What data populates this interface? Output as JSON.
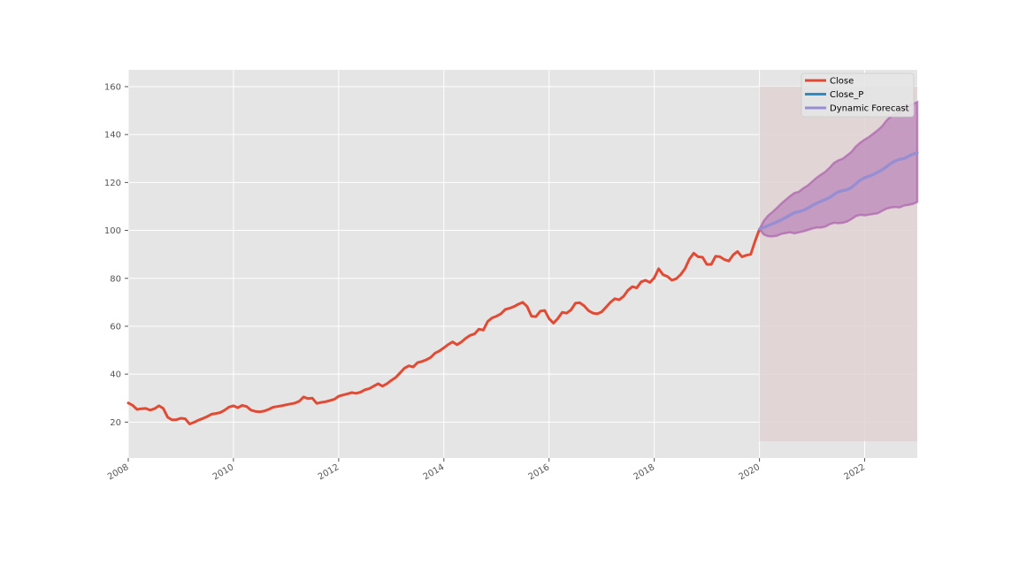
{
  "chart_data": {
    "type": "line",
    "title": "",
    "xlabel": "",
    "ylabel": "",
    "xlim": [
      "2008-01",
      "2023-01"
    ],
    "ylim": [
      5,
      167
    ],
    "grid": true,
    "legend_placement": "top-right",
    "x_ticks": [
      "2008",
      "2010",
      "2012",
      "2014",
      "2016",
      "2018",
      "2020",
      "2022"
    ],
    "y_ticks": [
      "20",
      "40",
      "60",
      "80",
      "100",
      "120",
      "140",
      "160"
    ],
    "colors": {
      "background": "#e5e5e5",
      "grid": "#ffffff",
      "close": "#e24a33",
      "close_p": "#348abd",
      "forecast": "#988ed5",
      "forecast_band": "#b06cb0",
      "forecast_region": "#e0d2d2"
    },
    "shaded_region": {
      "x_start": "2020-01",
      "x_end": "2023-01",
      "y_range": [
        12,
        160
      ]
    },
    "series": [
      {
        "name": "Close",
        "x": [
          "2008-01",
          "2008-02",
          "2008-03",
          "2008-04",
          "2008-05",
          "2008-06",
          "2008-07",
          "2008-08",
          "2008-09",
          "2008-10",
          "2008-11",
          "2008-12",
          "2009-01",
          "2009-02",
          "2009-03",
          "2009-04",
          "2009-05",
          "2009-06",
          "2009-07",
          "2009-08",
          "2009-09",
          "2009-10",
          "2009-11",
          "2009-12",
          "2010-01",
          "2010-02",
          "2010-03",
          "2010-04",
          "2010-05",
          "2010-06",
          "2010-07",
          "2010-08",
          "2010-09",
          "2010-10",
          "2010-11",
          "2010-12",
          "2011-01",
          "2011-02",
          "2011-03",
          "2011-04",
          "2011-05",
          "2011-06",
          "2011-07",
          "2011-08",
          "2011-09",
          "2011-10",
          "2011-11",
          "2011-12",
          "2012-01",
          "2012-02",
          "2012-03",
          "2012-04",
          "2012-05",
          "2012-06",
          "2012-07",
          "2012-08",
          "2012-09",
          "2012-10",
          "2012-11",
          "2012-12",
          "2013-01",
          "2013-02",
          "2013-03",
          "2013-04",
          "2013-05",
          "2013-06",
          "2013-07",
          "2013-08",
          "2013-09",
          "2013-10",
          "2013-11",
          "2013-12",
          "2014-01",
          "2014-02",
          "2014-03",
          "2014-04",
          "2014-05",
          "2014-06",
          "2014-07",
          "2014-08",
          "2014-09",
          "2014-10",
          "2014-11",
          "2014-12",
          "2015-01",
          "2015-02",
          "2015-03",
          "2015-04",
          "2015-05",
          "2015-06",
          "2015-07",
          "2015-08",
          "2015-09",
          "2015-10",
          "2015-11",
          "2015-12",
          "2016-01",
          "2016-02",
          "2016-03",
          "2016-04",
          "2016-05",
          "2016-06",
          "2016-07",
          "2016-08",
          "2016-09",
          "2016-10",
          "2016-11",
          "2016-12",
          "2017-01",
          "2017-02",
          "2017-03",
          "2017-04",
          "2017-05",
          "2017-06",
          "2017-07",
          "2017-08",
          "2017-09",
          "2017-10",
          "2017-11",
          "2017-12",
          "2018-01",
          "2018-02",
          "2018-03",
          "2018-04",
          "2018-05",
          "2018-06",
          "2018-07",
          "2018-08",
          "2018-09",
          "2018-10",
          "2018-11",
          "2018-12",
          "2019-01",
          "2019-02",
          "2019-03",
          "2019-04",
          "2019-05",
          "2019-06",
          "2019-07",
          "2019-08",
          "2019-09",
          "2019-10",
          "2019-11",
          "2019-12",
          "2020-01"
        ],
        "values": [
          28.0,
          27.0,
          25.3,
          25.6,
          25.7,
          25.0,
          25.6,
          26.8,
          25.7,
          22.0,
          20.9,
          21.0,
          21.6,
          21.4,
          19.2,
          19.9,
          20.8,
          21.5,
          22.3,
          23.3,
          23.6,
          24.0,
          25.0,
          26.3,
          26.8,
          26.0,
          27.0,
          26.5,
          25.0,
          24.5,
          24.3,
          24.6,
          25.3,
          26.2,
          26.5,
          26.8,
          27.2,
          27.6,
          27.9,
          28.7,
          30.5,
          29.8,
          30.0,
          27.8,
          28.2,
          28.5,
          29.0,
          29.5,
          30.8,
          31.3,
          31.8,
          32.3,
          32.0,
          32.5,
          33.5,
          34.0,
          35.0,
          36.0,
          35.0,
          36.0,
          37.4,
          38.6,
          40.5,
          42.5,
          43.5,
          43.0,
          44.8,
          45.3,
          46.0,
          47.0,
          48.8,
          49.7,
          51.0,
          52.4,
          53.5,
          52.3,
          53.4,
          55.0,
          56.2,
          56.8,
          58.8,
          58.4,
          62.0,
          63.5,
          64.2,
          65.2,
          67.0,
          67.5,
          68.2,
          69.2,
          70.0,
          68.2,
          64.2,
          64.0,
          66.3,
          66.6,
          63.2,
          61.3,
          63.2,
          65.8,
          65.5,
          66.8,
          69.6,
          69.8,
          68.5,
          66.5,
          65.5,
          65.2,
          66.0,
          68.0,
          70.0,
          71.5,
          71.0,
          72.5,
          75.0,
          76.5,
          76.0,
          78.5,
          79.2,
          78.3,
          80.2,
          84.0,
          81.5,
          80.8,
          79.2,
          79.8,
          81.5,
          84.0,
          88.0,
          90.5,
          89.0,
          88.8,
          85.8,
          85.8,
          89.2,
          89.0,
          87.8,
          87.2,
          89.8,
          91.2,
          89.0,
          89.6,
          90.0,
          95.5,
          100.5
        ]
      },
      {
        "name": "Close_P",
        "x": [
          "2020-01",
          "2020-02",
          "2020-03",
          "2020-04",
          "2020-05",
          "2020-06",
          "2020-07",
          "2020-08",
          "2020-09",
          "2020-10",
          "2020-11",
          "2020-12",
          "2021-01",
          "2021-02",
          "2021-03",
          "2021-04",
          "2021-05",
          "2021-06",
          "2021-07",
          "2021-08",
          "2021-09",
          "2021-10",
          "2021-11",
          "2021-12",
          "2022-01",
          "2022-02",
          "2022-03",
          "2022-04",
          "2022-05",
          "2022-06",
          "2022-07",
          "2022-08",
          "2022-09",
          "2022-10",
          "2022-11",
          "2022-12",
          "2023-01"
        ],
        "values": [
          100.5,
          101.3,
          102.0,
          102.8,
          103.6,
          104.4,
          105.4,
          106.4,
          107.4,
          107.8,
          108.4,
          109.3,
          110.3,
          111.3,
          112.1,
          112.9,
          113.7,
          115.0,
          116.1,
          116.6,
          117.0,
          117.9,
          119.5,
          121.0,
          122.0,
          122.6,
          123.4,
          124.3,
          125.3,
          126.6,
          128.0,
          129.0,
          129.7,
          130.0,
          131.0,
          131.8,
          132.3
        ]
      },
      {
        "name": "Dynamic Forecast",
        "x": [
          "2020-01",
          "2020-02",
          "2020-03",
          "2020-04",
          "2020-05",
          "2020-06",
          "2020-07",
          "2020-08",
          "2020-09",
          "2020-10",
          "2020-11",
          "2020-12",
          "2021-01",
          "2021-02",
          "2021-03",
          "2021-04",
          "2021-05",
          "2021-06",
          "2021-07",
          "2021-08",
          "2021-09",
          "2021-10",
          "2021-11",
          "2021-12",
          "2022-01",
          "2022-02",
          "2022-03",
          "2022-04",
          "2022-05",
          "2022-06",
          "2022-07",
          "2022-08",
          "2022-09",
          "2022-10",
          "2022-11",
          "2022-12",
          "2023-01"
        ],
        "values": [
          100.5,
          101.3,
          102.0,
          102.8,
          103.6,
          104.4,
          105.4,
          106.4,
          107.4,
          107.8,
          108.4,
          109.3,
          110.3,
          111.3,
          112.1,
          112.9,
          113.7,
          115.0,
          116.1,
          116.6,
          117.0,
          117.9,
          119.5,
          121.0,
          122.0,
          122.6,
          123.4,
          124.3,
          125.3,
          126.6,
          128.0,
          129.0,
          129.7,
          130.0,
          131.0,
          131.8,
          132.3
        ],
        "lower": [
          100.5,
          98.3,
          97.6,
          97.5,
          97.8,
          98.6,
          98.9,
          99.2,
          98.8,
          99.2,
          99.6,
          100.2,
          100.8,
          101.2,
          101.2,
          101.6,
          102.6,
          103.2,
          103.0,
          103.2,
          103.7,
          104.8,
          106.0,
          106.5,
          106.3,
          106.6,
          106.9,
          107.2,
          108.2,
          109.1,
          109.6,
          109.8,
          109.6,
          110.4,
          110.7,
          111.1,
          111.9
        ],
        "upper": [
          100.5,
          104.0,
          106.2,
          107.7,
          109.4,
          111.2,
          112.8,
          114.3,
          115.6,
          116.1,
          117.6,
          118.7,
          120.3,
          121.9,
          123.2,
          124.4,
          126.1,
          128.1,
          129.2,
          129.9,
          131.3,
          132.8,
          135.0,
          136.6,
          137.9,
          139.0,
          140.4,
          141.8,
          143.5,
          145.8,
          147.6,
          148.7,
          149.3,
          151.2,
          152.1,
          152.7,
          153.5
        ]
      }
    ]
  }
}
